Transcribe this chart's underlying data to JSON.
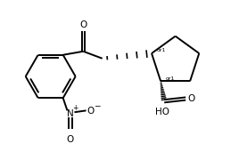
{
  "background_color": "#ffffff",
  "line_color": "#000000",
  "line_width": 1.4,
  "figsize": [
    2.68,
    1.8
  ],
  "dpi": 100,
  "xlim": [
    0.0,
    10.0
  ],
  "ylim": [
    0.0,
    6.7
  ]
}
